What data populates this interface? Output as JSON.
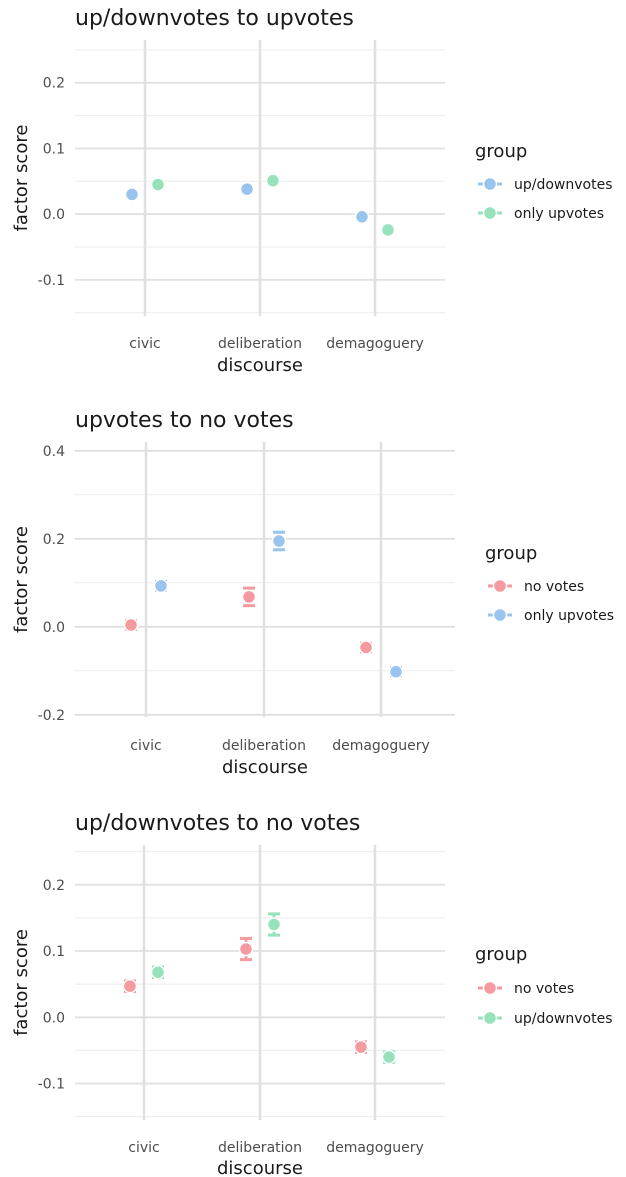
{
  "colors": {
    "up_downvotes": "#99c4ee",
    "only_upvotes_green": "#97e1bb",
    "no_votes": "#f59a9e",
    "only_upvotes_blue": "#99c4ee",
    "up_downvotes_green": "#97e1bb"
  },
  "chart_data": [
    {
      "type": "scatter",
      "title": "up/downvotes to upvotes",
      "xlabel": "discourse",
      "ylabel": "factor score",
      "categories": [
        "civic",
        "deliberation",
        "demagoguery"
      ],
      "ylim": [
        -0.155,
        0.265
      ],
      "yticks": [
        -0.1,
        0.0,
        0.1,
        0.2
      ],
      "ytick_labels": [
        "-0.1",
        "0.0",
        "0.1",
        "0.2"
      ],
      "legend_title": "group",
      "legend_position": "right",
      "series": [
        {
          "name": "up/downvotes",
          "color": "#99c4ee",
          "values": [
            0.03,
            0.038,
            -0.004
          ],
          "err": [
            0.005,
            0.005,
            0.005
          ]
        },
        {
          "name": "only upvotes",
          "color": "#97e1bb",
          "values": [
            0.045,
            0.051,
            -0.024
          ],
          "err": [
            0.005,
            0.005,
            0.005
          ]
        }
      ]
    },
    {
      "type": "scatter",
      "title": "upvotes to no votes",
      "xlabel": "discourse",
      "ylabel": "factor score",
      "categories": [
        "civic",
        "deliberation",
        "demagoguery"
      ],
      "ylim": [
        -0.205,
        0.42
      ],
      "yticks": [
        -0.2,
        0.0,
        0.2,
        0.4
      ],
      "ytick_labels": [
        "-0.2",
        "0.0",
        "0.2",
        "0.4"
      ],
      "legend_title": "group",
      "legend_position": "right",
      "series": [
        {
          "name": "no votes",
          "color": "#f59a9e",
          "values": [
            0.004,
            0.068,
            -0.047
          ],
          "err": [
            0.01,
            0.02,
            0.01
          ]
        },
        {
          "name": "only upvotes",
          "color": "#99c4ee",
          "values": [
            0.093,
            0.195,
            -0.102
          ],
          "err": [
            0.01,
            0.02,
            0.01
          ]
        }
      ]
    },
    {
      "type": "scatter",
      "title": "up/downvotes to no votes",
      "xlabel": "discourse",
      "ylabel": "factor score",
      "categories": [
        "civic",
        "deliberation",
        "demagoguery"
      ],
      "ylim": [
        -0.155,
        0.26
      ],
      "yticks": [
        -0.1,
        0.0,
        0.1,
        0.2
      ],
      "ytick_labels": [
        "-0.1",
        "0.0",
        "0.1",
        "0.2"
      ],
      "legend_title": "group",
      "legend_position": "right",
      "series": [
        {
          "name": "no votes",
          "color": "#f59a9e",
          "values": [
            0.047,
            0.103,
            -0.045
          ],
          "err": [
            0.008,
            0.016,
            0.008
          ]
        },
        {
          "name": "up/downvotes",
          "color": "#97e1bb",
          "values": [
            0.068,
            0.14,
            -0.06
          ],
          "err": [
            0.008,
            0.016,
            0.008
          ]
        }
      ]
    }
  ]
}
